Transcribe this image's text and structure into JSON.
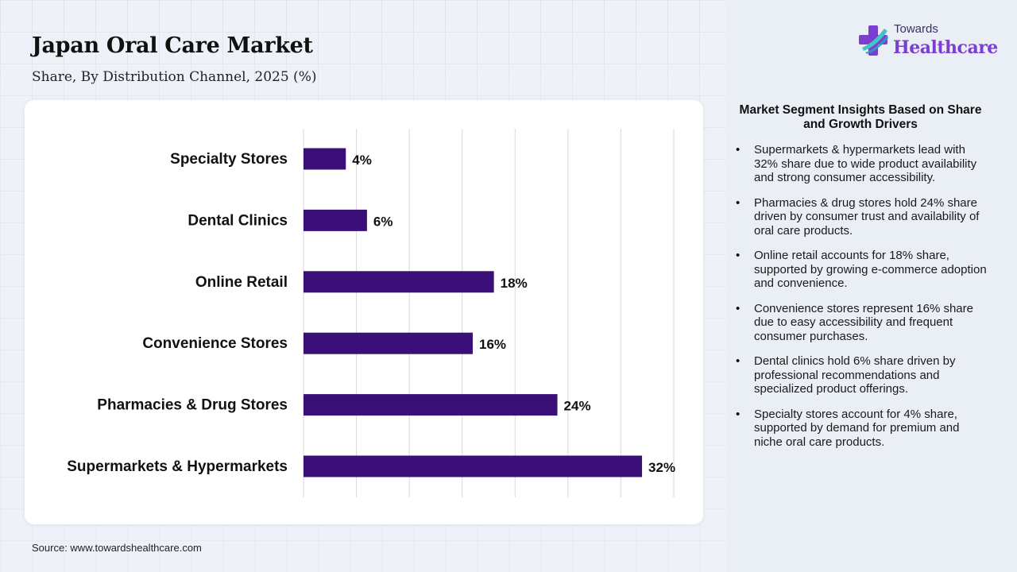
{
  "header": {
    "title": "Japan Oral Care Market",
    "subtitle": "Share, By Distribution Channel, 2025 (%)"
  },
  "logo": {
    "top_text": "Towards",
    "main_text": "Healthcare",
    "icon": "medical-cross-icon"
  },
  "source": "Source: www.towardshealthcare.com",
  "insights": {
    "title": "Market Segment Insights Based on Share and Growth Drivers",
    "items": [
      "Supermarkets & hypermarkets lead with 32% share due to wide product availability and strong consumer accessibility.",
      "Pharmacies & drug stores hold 24% share driven by consumer trust and availability of oral care products.",
      "Online retail accounts for 18% share, supported by growing e-commerce adoption and convenience.",
      "Convenience stores represent 16% share due to easy accessibility and frequent consumer purchases.",
      "Dental clinics hold 6% share driven by professional recommendations and specialized product offerings.",
      "Specialty stores account for 4% share, supported by demand for premium and niche oral care products."
    ]
  },
  "chart_data": {
    "type": "bar",
    "orientation": "horizontal",
    "categories": [
      "Specialty Stores",
      "Dental Clinics",
      "Online Retail",
      "Convenience Stores",
      "Pharmacies & Drug Stores",
      "Supermarkets & Hypermarkets"
    ],
    "values": [
      4,
      6,
      18,
      16,
      24,
      32
    ],
    "data_labels": [
      "4%",
      "6%",
      "18%",
      "16%",
      "24%",
      "32%"
    ],
    "unit": "%",
    "xlim": [
      0,
      35
    ],
    "grid": true,
    "legend": "none",
    "colors": {
      "bar": "#3b0f78",
      "grid": "#d9d9d9",
      "label": "#111111"
    }
  }
}
